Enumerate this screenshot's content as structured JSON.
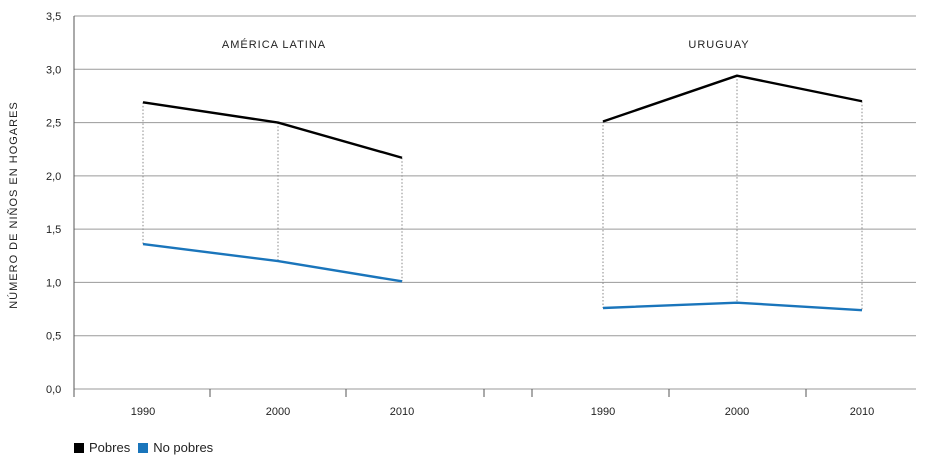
{
  "chart_data": {
    "type": "line",
    "ylabel": "NÚMERO DE NIÑOS EN HOGARES",
    "ylim": [
      0,
      3.5
    ],
    "yticks": [
      "0,0",
      "0,5",
      "1,0",
      "1,5",
      "2,0",
      "2,5",
      "3,0",
      "3,5"
    ],
    "grid": true,
    "legend_placement": "bottom-left",
    "panels": [
      {
        "title": "AMÉRICA LATINA",
        "x": [
          "1990",
          "2000",
          "2010"
        ],
        "series": [
          {
            "name": "Pobres",
            "color": "#000000",
            "values": [
              2.69,
              2.5,
              2.17
            ]
          },
          {
            "name": "No pobres",
            "color": "#1a75bb",
            "values": [
              1.36,
              1.2,
              1.01
            ]
          }
        ]
      },
      {
        "title": "URUGUAY",
        "x": [
          "1990",
          "2000",
          "2010"
        ],
        "series": [
          {
            "name": "Pobres",
            "color": "#000000",
            "values": [
              2.51,
              2.94,
              2.7
            ]
          },
          {
            "name": "No pobres",
            "color": "#1a75bb",
            "values": [
              0.76,
              0.81,
              0.74
            ]
          }
        ]
      }
    ],
    "legend": [
      {
        "label": "Pobres",
        "color": "#000000"
      },
      {
        "label": "No pobres",
        "color": "#1a75bb"
      }
    ]
  }
}
